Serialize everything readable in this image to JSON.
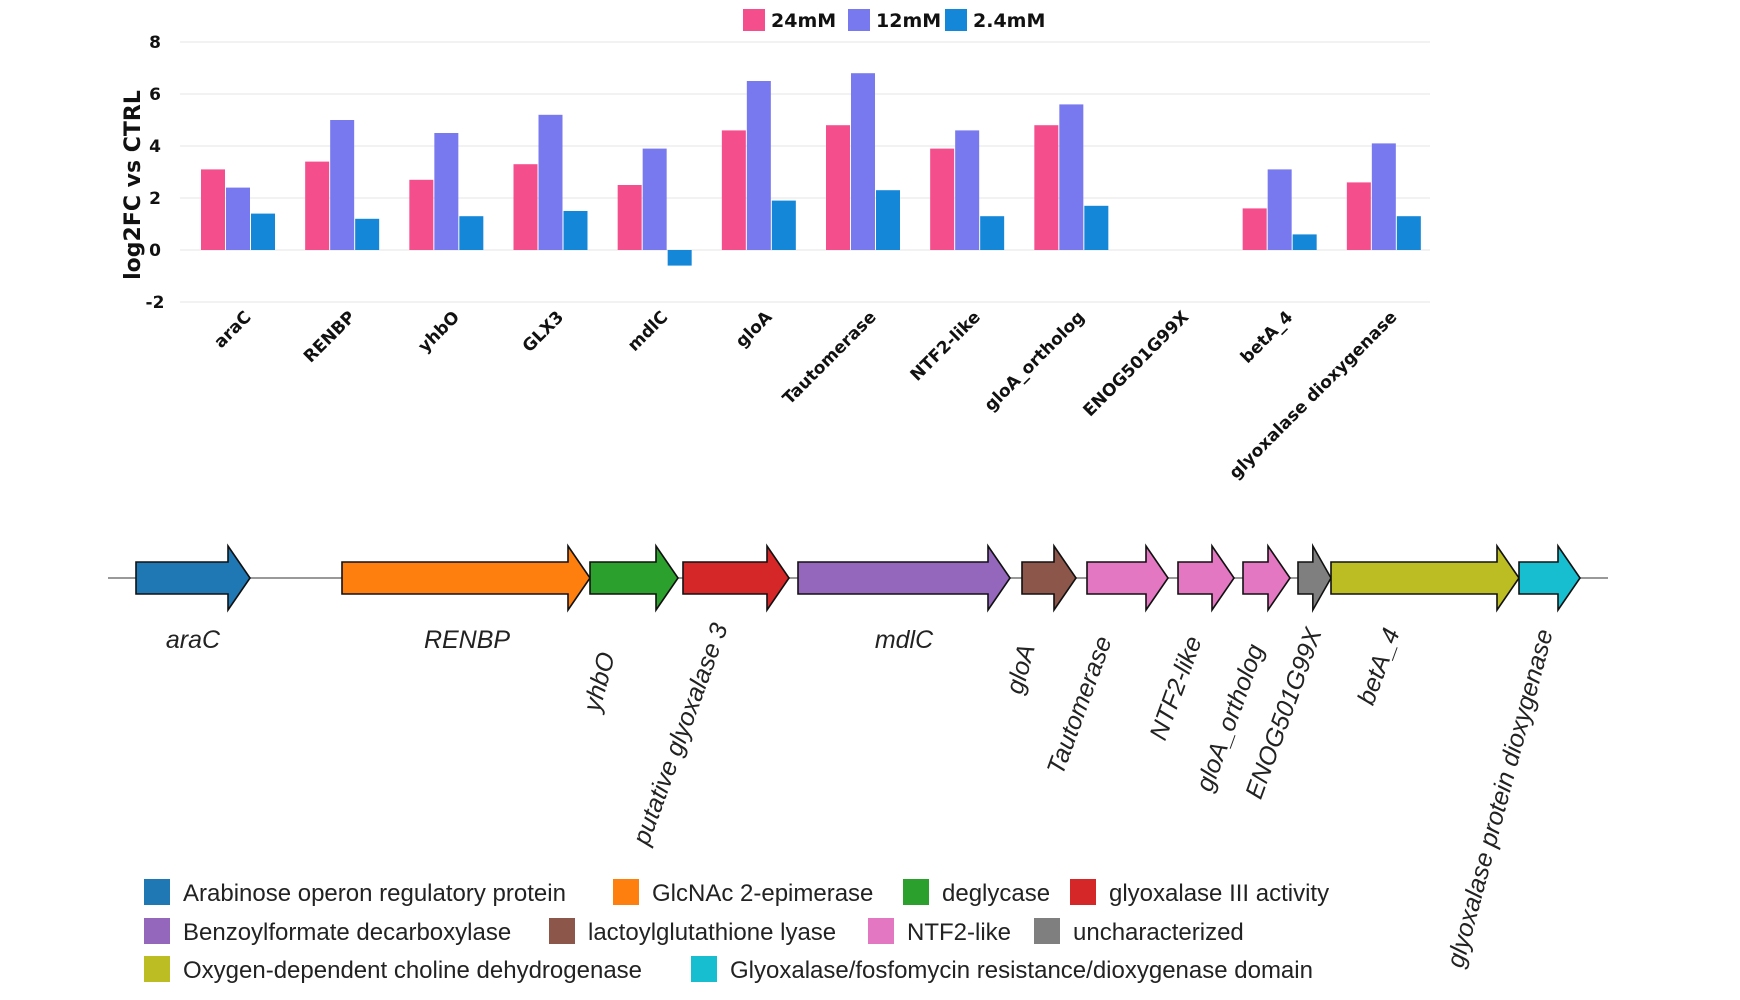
{
  "chart_data": {
    "type": "bar",
    "ylabel": "log2FC vs CTRL",
    "ylim": [
      -2,
      8
    ],
    "yticks": [
      "8",
      "6",
      "4",
      "2",
      "0",
      "-2"
    ],
    "grid": true,
    "legend_position": "top-center",
    "categories": [
      "araC",
      "RENBP",
      "yhbO",
      "GLX3",
      "mdlC",
      "gloA",
      "Tautomerase",
      "NTF2-like",
      "gloA_ortholog",
      "ENOG501G99X",
      "betA_4",
      "glyoxalase dioxygenase"
    ],
    "series": [
      {
        "name": "24mM",
        "color": "#f54e8c",
        "values": [
          3.1,
          3.4,
          2.7,
          3.3,
          2.5,
          4.6,
          4.8,
          3.9,
          4.8,
          null,
          1.6,
          2.6
        ]
      },
      {
        "name": "12mM",
        "color": "#7879ee",
        "values": [
          2.4,
          5.0,
          4.5,
          5.2,
          3.9,
          6.5,
          6.8,
          4.6,
          5.6,
          null,
          3.1,
          4.1
        ]
      },
      {
        "name": "2.4mM",
        "color": "#1587d8",
        "values": [
          1.4,
          1.2,
          1.3,
          1.5,
          -0.6,
          1.9,
          2.3,
          1.3,
          1.7,
          null,
          0.6,
          1.3
        ]
      }
    ]
  },
  "operon": {
    "genes": [
      {
        "label": "araC",
        "color": "#1f77b4",
        "category": 0
      },
      {
        "label": "RENBP",
        "color": "#ff7f0e",
        "category": 1
      },
      {
        "label": "yhbO",
        "color": "#2ca02c",
        "category": 2
      },
      {
        "label": "putative glyoxalase 3",
        "color": "#d62728",
        "category": 3
      },
      {
        "label": "mdlC",
        "color": "#9467bd",
        "category": 4
      },
      {
        "label": "gloA",
        "color": "#8c564b",
        "category": 5
      },
      {
        "label": "Tautomerase",
        "color": "#e377c2",
        "category": 6
      },
      {
        "label": "NTF2-like",
        "color": "#e377c2",
        "category": 6
      },
      {
        "label": "gloA_ortholog",
        "color": "#e377c2",
        "category": 6
      },
      {
        "label": "ENOG501G99X",
        "color": "#7f7f7f",
        "category": 7
      },
      {
        "label": "betA_4",
        "color": "#bcbd22",
        "category": 8
      },
      {
        "label": "glyoxalase protein dioxygenase",
        "color": "#17becf",
        "category": 9
      }
    ],
    "legend": [
      {
        "label": "Arabinose operon regulatory protein",
        "color": "#1f77b4"
      },
      {
        "label": "GlcNAc 2-epimerase",
        "color": "#ff7f0e"
      },
      {
        "label": "deglycase",
        "color": "#2ca02c"
      },
      {
        "label": "glyoxalase III activity",
        "color": "#d62728"
      },
      {
        "label": "Benzoylformate decarboxylase",
        "color": "#9467bd"
      },
      {
        "label": "lactoylglutathione lyase",
        "color": "#8c564b"
      },
      {
        "label": "NTF2-like",
        "color": "#e377c2"
      },
      {
        "label": "uncharacterized",
        "color": "#7f7f7f"
      },
      {
        "label": "Oxygen-dependent choline dehydrogenase",
        "color": "#bcbd22"
      },
      {
        "label": "Glyoxalase/fosfomycin resistance/dioxygenase domain",
        "color": "#17becf"
      }
    ]
  }
}
